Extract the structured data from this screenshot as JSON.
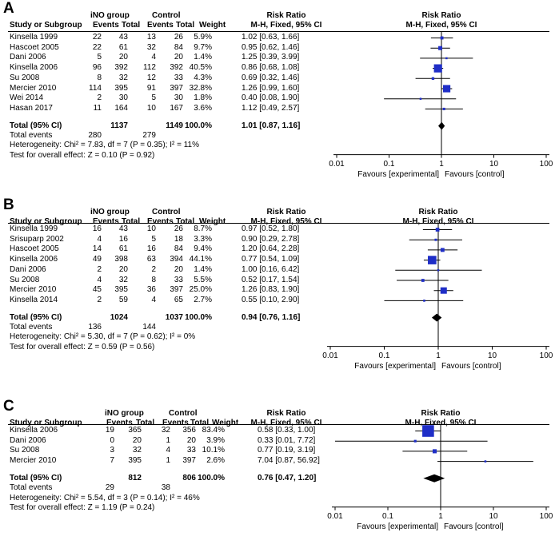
{
  "style": {
    "box_color": "#1f2ec7",
    "line_color": "#000000",
    "diamond_color": "#000000"
  },
  "panels": [
    {
      "letter": "A",
      "group_exp": "iNO group",
      "group_ctrl": "Control",
      "headers": {
        "study": "Study or Subgroup",
        "events": "Events",
        "total": "Total",
        "weight": "Weight",
        "rr_title": "Risk Ratio",
        "rr_method": "M-H, Fixed, 95% CI"
      },
      "studies": [
        {
          "name": "Kinsella 1999",
          "e1": "22",
          "t1": "43",
          "e2": "13",
          "t2": "26",
          "weight": "5.9%",
          "ci_text": "1.02 [0.63, 1.66]",
          "rr": 1.02,
          "lo": 0.63,
          "hi": 1.66,
          "w": 5.9
        },
        {
          "name": "Hascoet  2005",
          "e1": "22",
          "t1": "61",
          "e2": "32",
          "t2": "84",
          "weight": "9.7%",
          "ci_text": "0.95 [0.62, 1.46]",
          "rr": 0.95,
          "lo": 0.62,
          "hi": 1.46,
          "w": 9.7
        },
        {
          "name": "Dani    2006",
          "e1": "5",
          "t1": "20",
          "e2": "4",
          "t2": "20",
          "weight": "1.4%",
          "ci_text": "1.25 [0.39, 3.99]",
          "rr": 1.25,
          "lo": 0.39,
          "hi": 3.99,
          "w": 1.4
        },
        {
          "name": "Kinsella  2006",
          "e1": "96",
          "t1": "392",
          "e2": "112",
          "t2": "392",
          "weight": "40.5%",
          "ci_text": "0.86 [0.68, 1.08]",
          "rr": 0.86,
          "lo": 0.68,
          "hi": 1.08,
          "w": 40.5
        },
        {
          "name": "Su     2008",
          "e1": "8",
          "t1": "32",
          "e2": "12",
          "t2": "33",
          "weight": "4.3%",
          "ci_text": "0.69 [0.32, 1.46]",
          "rr": 0.69,
          "lo": 0.32,
          "hi": 1.46,
          "w": 4.3
        },
        {
          "name": "Mercier  2010",
          "e1": "114",
          "t1": "395",
          "e2": "91",
          "t2": "397",
          "weight": "32.8%",
          "ci_text": "1.26 [0.99, 1.60]",
          "rr": 1.26,
          "lo": 0.99,
          "hi": 1.6,
          "w": 32.8
        },
        {
          "name": "Wei    2014",
          "e1": "2",
          "t1": "30",
          "e2": "5",
          "t2": "30",
          "weight": "1.8%",
          "ci_text": "0.40 [0.08, 1.90]",
          "rr": 0.4,
          "lo": 0.08,
          "hi": 1.9,
          "w": 1.8
        },
        {
          "name": "Hasan   2017",
          "e1": "11",
          "t1": "164",
          "e2": "10",
          "t2": "167",
          "weight": "3.6%",
          "ci_text": "1.12 [0.49, 2.57]",
          "rr": 1.12,
          "lo": 0.49,
          "hi": 2.57,
          "w": 3.6
        }
      ],
      "total": {
        "label": "Total (95% CI)",
        "t1": "1137",
        "t2": "1149",
        "weight": "100.0%",
        "ci_text": "1.01 [0.87, 1.16]",
        "rr": 1.01,
        "lo": 0.87,
        "hi": 1.16
      },
      "total_events": {
        "label": "Total events",
        "e1": "280",
        "e2": "279"
      },
      "heterogeneity": "Heterogeneity: Chi² = 7.83, df = 7 (P = 0.35); I² = 11%",
      "overall": "Test for overall effect: Z = 0.10 (P = 0.92)",
      "axis": {
        "ticks": [
          "0.01",
          "0.1",
          "1",
          "10",
          "100"
        ],
        "tick_values": [
          0.01,
          0.1,
          1,
          10,
          100
        ],
        "favours_left": "Favours [experimental]",
        "favours_right": "Favours [control]"
      }
    },
    {
      "letter": "B",
      "group_exp": "iNO group",
      "group_ctrl": "Control",
      "headers": {
        "study": "Study or Subgroup",
        "events": "Events",
        "total": "Total",
        "weight": "Weight",
        "rr_title": "Risk Ratio",
        "rr_method": "M-H, Fixed, 95% CI"
      },
      "studies": [
        {
          "name": "Kinsella 1999",
          "e1": "16",
          "t1": "43",
          "e2": "10",
          "t2": "26",
          "weight": "8.7%",
          "ci_text": "0.97 [0.52, 1.80]",
          "rr": 0.97,
          "lo": 0.52,
          "hi": 1.8,
          "w": 8.7
        },
        {
          "name": "Srisuparp 2002",
          "e1": "4",
          "t1": "16",
          "e2": "5",
          "t2": "18",
          "weight": "3.3%",
          "ci_text": "0.90 [0.29, 2.78]",
          "rr": 0.9,
          "lo": 0.29,
          "hi": 2.78,
          "w": 3.3
        },
        {
          "name": "Hascoet  2005",
          "e1": "14",
          "t1": "61",
          "e2": "16",
          "t2": "84",
          "weight": "9.4%",
          "ci_text": "1.20 [0.64, 2.28]",
          "rr": 1.2,
          "lo": 0.64,
          "hi": 2.28,
          "w": 9.4
        },
        {
          "name": "Kinsella  2006",
          "e1": "49",
          "t1": "398",
          "e2": "63",
          "t2": "394",
          "weight": "44.1%",
          "ci_text": "0.77 [0.54, 1.09]",
          "rr": 0.77,
          "lo": 0.54,
          "hi": 1.09,
          "w": 44.1
        },
        {
          "name": "Dani    2006",
          "e1": "2",
          "t1": "20",
          "e2": "2",
          "t2": "20",
          "weight": "1.4%",
          "ci_text": "1.00 [0.16, 6.42]",
          "rr": 1.0,
          "lo": 0.16,
          "hi": 6.42,
          "w": 1.4
        },
        {
          "name": "Su     2008",
          "e1": "4",
          "t1": "32",
          "e2": "8",
          "t2": "33",
          "weight": "5.5%",
          "ci_text": "0.52 [0.17, 1.54]",
          "rr": 0.52,
          "lo": 0.17,
          "hi": 1.54,
          "w": 5.5
        },
        {
          "name": "Mercier  2010",
          "e1": "45",
          "t1": "395",
          "e2": "36",
          "t2": "397",
          "weight": "25.0%",
          "ci_text": "1.26 [0.83, 1.90]",
          "rr": 1.26,
          "lo": 0.83,
          "hi": 1.9,
          "w": 25.0
        },
        {
          "name": "Kinsella 2014",
          "e1": "2",
          "t1": "59",
          "e2": "4",
          "t2": "65",
          "weight": "2.7%",
          "ci_text": "0.55 [0.10, 2.90]",
          "rr": 0.55,
          "lo": 0.1,
          "hi": 2.9,
          "w": 2.7
        }
      ],
      "total": {
        "label": "Total (95% CI)",
        "t1": "1024",
        "t2": "1037",
        "weight": "100.0%",
        "ci_text": "0.94 [0.76, 1.16]",
        "rr": 0.94,
        "lo": 0.76,
        "hi": 1.16
      },
      "total_events": {
        "label": "Total events",
        "e1": "136",
        "e2": "144"
      },
      "heterogeneity": "Heterogeneity: Chi² = 5.30, df = 7 (P = 0.62); I² = 0%",
      "overall": "Test for overall effect: Z = 0.59 (P = 0.56)",
      "axis": {
        "ticks": [
          "0.01",
          "0.1",
          "1",
          "10",
          "100"
        ],
        "tick_values": [
          0.01,
          0.1,
          1,
          10,
          100
        ],
        "favours_left": "Favours [experimental]",
        "favours_right": "Favours [control]"
      }
    },
    {
      "letter": "C",
      "group_exp": "iNO group",
      "group_ctrl": "Control",
      "headers": {
        "study": "Study or Subgroup",
        "events": "Events",
        "total": "Total",
        "weight": "Weight",
        "rr_title": "Risk Ratio",
        "rr_method": "M-H, Fixed, 95% CI"
      },
      "studies": [
        {
          "name": "Kinsella  2006",
          "e1": "19",
          "t1": "365",
          "e2": "32",
          "t2": "356",
          "weight": "83.4%",
          "ci_text": "0.58 [0.33, 1.00]",
          "rr": 0.58,
          "lo": 0.33,
          "hi": 1.0,
          "w": 83.4
        },
        {
          "name": "Dani    2006",
          "e1": "0",
          "t1": "20",
          "e2": "1",
          "t2": "20",
          "weight": "3.9%",
          "ci_text": "0.33 [0.01, 7.72]",
          "rr": 0.33,
          "lo": 0.01,
          "hi": 7.72,
          "w": 3.9
        },
        {
          "name": "Su     2008",
          "e1": "3",
          "t1": "32",
          "e2": "4",
          "t2": "33",
          "weight": "10.1%",
          "ci_text": "0.77 [0.19, 3.19]",
          "rr": 0.77,
          "lo": 0.19,
          "hi": 3.19,
          "w": 10.1
        },
        {
          "name": "Mercier  2010",
          "e1": "7",
          "t1": "395",
          "e2": "1",
          "t2": "397",
          "weight": "2.6%",
          "ci_text": "7.04 [0.87, 56.92]",
          "rr": 7.04,
          "lo": 0.87,
          "hi": 56.92,
          "w": 2.6
        }
      ],
      "total": {
        "label": "Total (95% CI)",
        "t1": "812",
        "t2": "806",
        "weight": "100.0%",
        "ci_text": "0.76 [0.47, 1.20]",
        "rr": 0.76,
        "lo": 0.47,
        "hi": 1.2
      },
      "total_events": {
        "label": "Total events",
        "e1": "29",
        "e2": "38"
      },
      "heterogeneity": "Heterogeneity: Chi² = 5.54, df = 3 (P = 0.14); I² = 46%",
      "overall": "Test for overall effect: Z = 1.19 (P = 0.24)",
      "axis": {
        "ticks": [
          "0.01",
          "0.1",
          "1",
          "10",
          "100"
        ],
        "tick_values": [
          0.01,
          0.1,
          1,
          10,
          100
        ],
        "favours_left": "Favours [experimental]",
        "favours_right": "Favours [control]"
      }
    }
  ],
  "chart_data": [
    {
      "type": "forest",
      "title": "A",
      "xscale": "log",
      "xlim": [
        0.01,
        100
      ],
      "reference_line": 1,
      "categories": [
        "Kinsella 1999",
        "Hascoet 2005",
        "Dani 2006",
        "Kinsella 2006",
        "Su 2008",
        "Mercier 2010",
        "Wei 2014",
        "Hasan 2017",
        "Total (95% CI)"
      ],
      "values": [
        1.02,
        0.95,
        1.25,
        0.86,
        0.69,
        1.26,
        0.4,
        1.12,
        1.01
      ],
      "ci_low": [
        0.63,
        0.62,
        0.39,
        0.68,
        0.32,
        0.99,
        0.08,
        0.49,
        0.87
      ],
      "ci_high": [
        1.66,
        1.46,
        3.99,
        1.08,
        1.46,
        1.6,
        1.9,
        2.57,
        1.16
      ],
      "weights": [
        5.9,
        9.7,
        1.4,
        40.5,
        4.3,
        32.8,
        1.8,
        3.6,
        100.0
      ],
      "xlabel_left": "Favours [experimental]",
      "xlabel_right": "Favours [control]"
    },
    {
      "type": "forest",
      "title": "B",
      "xscale": "log",
      "xlim": [
        0.01,
        100
      ],
      "reference_line": 1,
      "categories": [
        "Kinsella 1999",
        "Srisuparp 2002",
        "Hascoet 2005",
        "Kinsella 2006",
        "Dani 2006",
        "Su 2008",
        "Mercier 2010",
        "Kinsella 2014",
        "Total (95% CI)"
      ],
      "values": [
        0.97,
        0.9,
        1.2,
        0.77,
        1.0,
        0.52,
        1.26,
        0.55,
        0.94
      ],
      "ci_low": [
        0.52,
        0.29,
        0.64,
        0.54,
        0.16,
        0.17,
        0.83,
        0.1,
        0.76
      ],
      "ci_high": [
        1.8,
        2.78,
        2.28,
        1.09,
        6.42,
        1.54,
        1.9,
        2.9,
        1.16
      ],
      "weights": [
        8.7,
        3.3,
        9.4,
        44.1,
        1.4,
        5.5,
        25.0,
        2.7,
        100.0
      ],
      "xlabel_left": "Favours [experimental]",
      "xlabel_right": "Favours [control]"
    },
    {
      "type": "forest",
      "title": "C",
      "xscale": "log",
      "xlim": [
        0.01,
        100
      ],
      "reference_line": 1,
      "categories": [
        "Kinsella 2006",
        "Dani 2006",
        "Su 2008",
        "Mercier 2010",
        "Total (95% CI)"
      ],
      "values": [
        0.58,
        0.33,
        0.77,
        7.04,
        0.76
      ],
      "ci_low": [
        0.33,
        0.01,
        0.19,
        0.87,
        0.47
      ],
      "ci_high": [
        1.0,
        7.72,
        3.19,
        56.92,
        1.2
      ],
      "weights": [
        83.4,
        3.9,
        10.1,
        2.6,
        100.0
      ],
      "xlabel_left": "Favours [experimental]",
      "xlabel_right": "Favours [control]"
    }
  ]
}
